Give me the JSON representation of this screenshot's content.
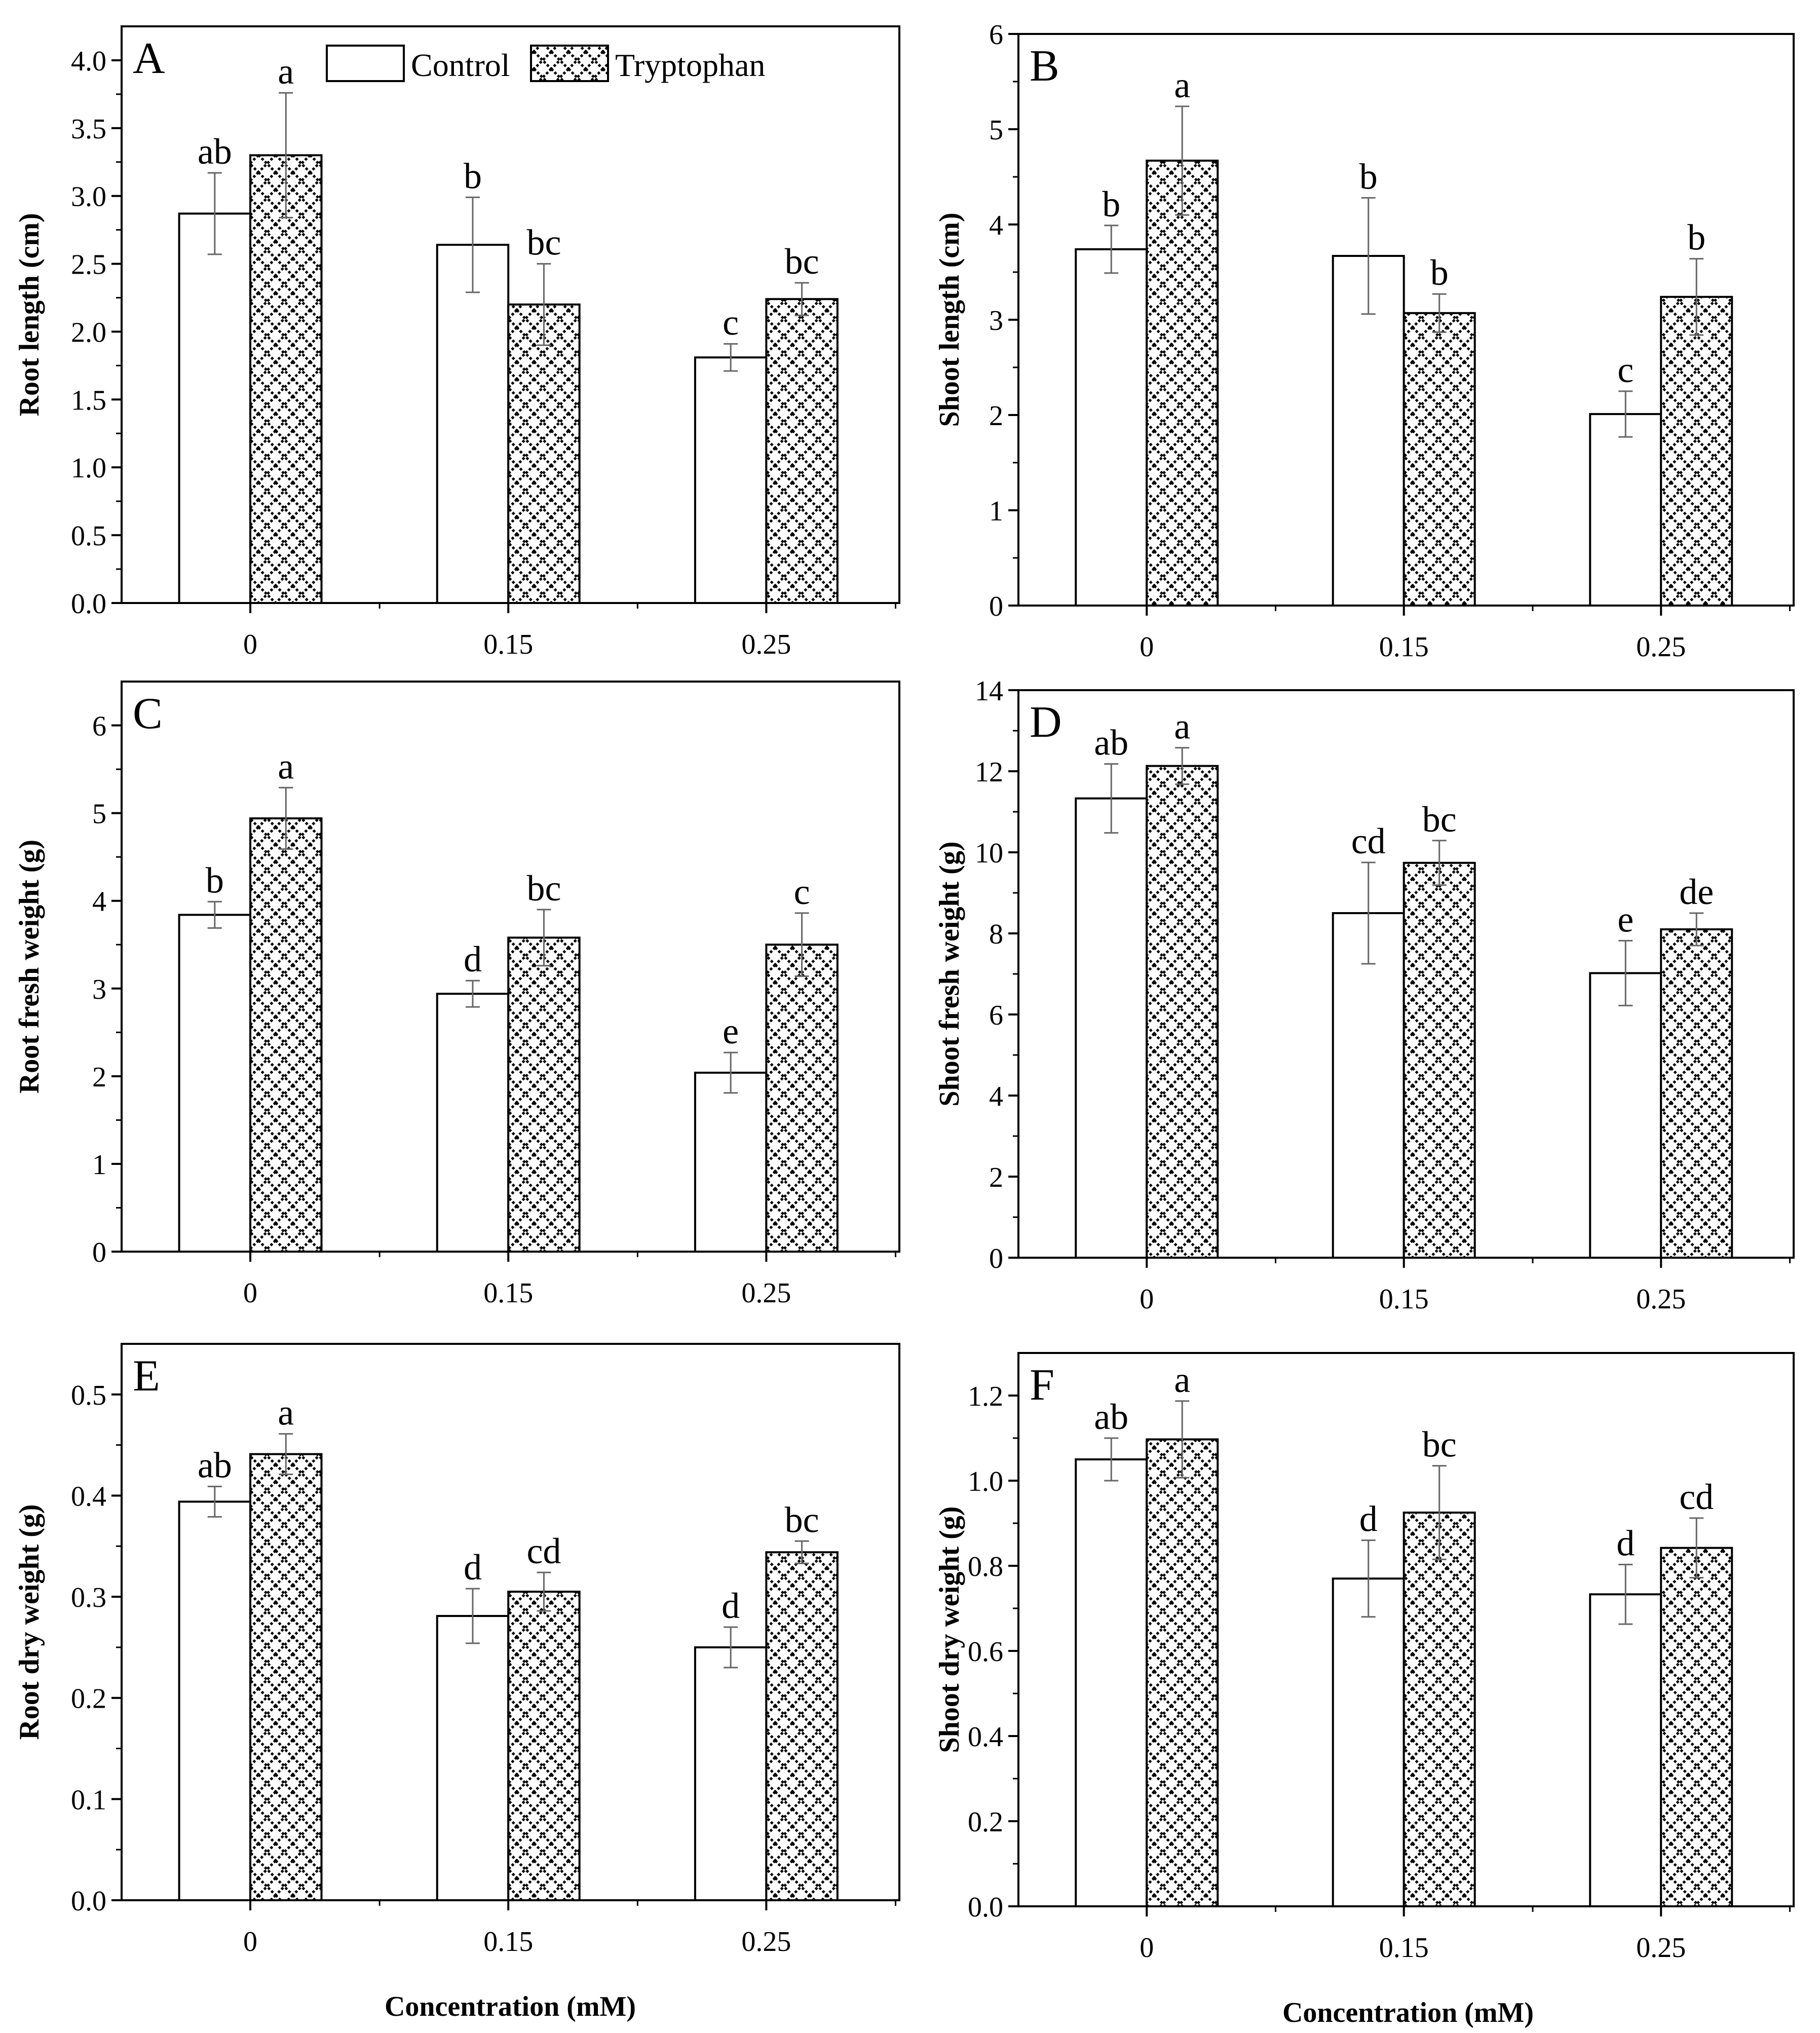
{
  "figure": {
    "xlabel_left": "Concentration (mM)",
    "xlabel_right": "Concentration (mM)"
  },
  "legend": {
    "items": [
      {
        "label": "Control",
        "pattern": "none"
      },
      {
        "label": "Tryptophan",
        "pattern": "zigzag-hatch"
      }
    ]
  },
  "colors": {
    "axis": "#000000",
    "bar_stroke": "#000000",
    "control_fill": "#ffffff",
    "hatch": "#000000",
    "error_bar": "#666666"
  },
  "chart_data": [
    {
      "panel": "A",
      "type": "bar",
      "ylabel": "Root length (cm)",
      "categories": [
        "0",
        "0.15",
        "0.25"
      ],
      "ylim": [
        0,
        4.25
      ],
      "yticks": [
        "0.0",
        "0.5",
        "1.0",
        "1.5",
        "2.0",
        "2.5",
        "3.0",
        "3.5",
        "4.0"
      ],
      "minor_ticks": true,
      "legend": true,
      "series": [
        {
          "name": "Control",
          "values": [
            2.87,
            2.64,
            1.81
          ],
          "errors": [
            0.3,
            0.35,
            0.1
          ],
          "letters": [
            "ab",
            "b",
            "c"
          ]
        },
        {
          "name": "Tryptophan",
          "values": [
            3.3,
            2.2,
            2.24
          ],
          "errors": [
            0.46,
            0.3,
            0.12
          ],
          "letters": [
            "a",
            "bc",
            "bc"
          ]
        }
      ]
    },
    {
      "panel": "B",
      "type": "bar",
      "ylabel": "Shoot length (cm)",
      "categories": [
        "0",
        "0.15",
        "0.25"
      ],
      "ylim": [
        0,
        6
      ],
      "yticks": [
        "0",
        "1",
        "2",
        "3",
        "4",
        "5",
        "6"
      ],
      "minor_ticks": true,
      "legend": false,
      "series": [
        {
          "name": "Control",
          "values": [
            3.74,
            3.67,
            2.01
          ],
          "errors": [
            0.25,
            0.61,
            0.24
          ],
          "letters": [
            "b",
            "b",
            "c"
          ]
        },
        {
          "name": "Tryptophan",
          "values": [
            4.67,
            3.07,
            3.24
          ],
          "errors": [
            0.57,
            0.2,
            0.4
          ],
          "letters": [
            "a",
            "b",
            "b"
          ]
        }
      ]
    },
    {
      "panel": "C",
      "type": "bar",
      "ylabel": "Root fresh weight (g)",
      "categories": [
        "0",
        "0.15",
        "0.25"
      ],
      "ylim": [
        0,
        6.5
      ],
      "yticks": [
        "0",
        "1",
        "2",
        "3",
        "4",
        "5",
        "6"
      ],
      "minor_ticks": true,
      "legend": false,
      "series": [
        {
          "name": "Control",
          "values": [
            3.84,
            2.94,
            2.04
          ],
          "errors": [
            0.15,
            0.15,
            0.23
          ],
          "letters": [
            "b",
            "d",
            "e"
          ]
        },
        {
          "name": "Tryptophan",
          "values": [
            4.94,
            3.58,
            3.5
          ],
          "errors": [
            0.35,
            0.32,
            0.36
          ],
          "letters": [
            "a",
            "bc",
            "c"
          ]
        }
      ]
    },
    {
      "panel": "D",
      "type": "bar",
      "ylabel": "Shoot fresh weight (g)",
      "categories": [
        "0",
        "0.15",
        "0.25"
      ],
      "ylim": [
        0,
        14
      ],
      "yticks": [
        "0",
        "2",
        "4",
        "6",
        "8",
        "10",
        "12",
        "14"
      ],
      "minor_ticks": true,
      "legend": false,
      "series": [
        {
          "name": "Control",
          "values": [
            11.33,
            8.5,
            7.02
          ],
          "errors": [
            0.85,
            1.25,
            0.8
          ],
          "letters": [
            "ab",
            "cd",
            "e"
          ]
        },
        {
          "name": "Tryptophan",
          "values": [
            12.13,
            9.74,
            8.1
          ],
          "errors": [
            0.45,
            0.55,
            0.4
          ],
          "letters": [
            "a",
            "bc",
            "de"
          ]
        }
      ]
    },
    {
      "panel": "E",
      "type": "bar",
      "ylabel": "Root dry weight (g)",
      "categories": [
        "0",
        "0.15",
        "0.25"
      ],
      "ylim": [
        0,
        0.55
      ],
      "yticks": [
        "0.0",
        "0.1",
        "0.2",
        "0.3",
        "0.4",
        "0.5"
      ],
      "minor_ticks": true,
      "legend": false,
      "series": [
        {
          "name": "Control",
          "values": [
            0.394,
            0.281,
            0.25
          ],
          "errors": [
            0.015,
            0.027,
            0.02
          ],
          "letters": [
            "ab",
            "d",
            "d"
          ]
        },
        {
          "name": "Tryptophan",
          "values": [
            0.441,
            0.305,
            0.344
          ],
          "errors": [
            0.02,
            0.019,
            0.011
          ],
          "letters": [
            "a",
            "cd",
            "bc"
          ]
        }
      ]
    },
    {
      "panel": "F",
      "type": "bar",
      "ylabel": "Shoot dry weight (g)",
      "categories": [
        "0",
        "0.15",
        "0.25"
      ],
      "ylim": [
        0,
        1.3
      ],
      "yticks": [
        "0.0",
        "0.2",
        "0.4",
        "0.6",
        "0.8",
        "1.0",
        "1.2"
      ],
      "minor_ticks": true,
      "legend": false,
      "series": [
        {
          "name": "Control",
          "values": [
            1.05,
            0.77,
            0.733
          ],
          "errors": [
            0.05,
            0.09,
            0.07
          ],
          "letters": [
            "ab",
            "d",
            "d"
          ]
        },
        {
          "name": "Tryptophan",
          "values": [
            1.097,
            0.925,
            0.842
          ],
          "errors": [
            0.09,
            0.11,
            0.07
          ],
          "letters": [
            "a",
            "bc",
            "cd"
          ]
        }
      ]
    }
  ]
}
